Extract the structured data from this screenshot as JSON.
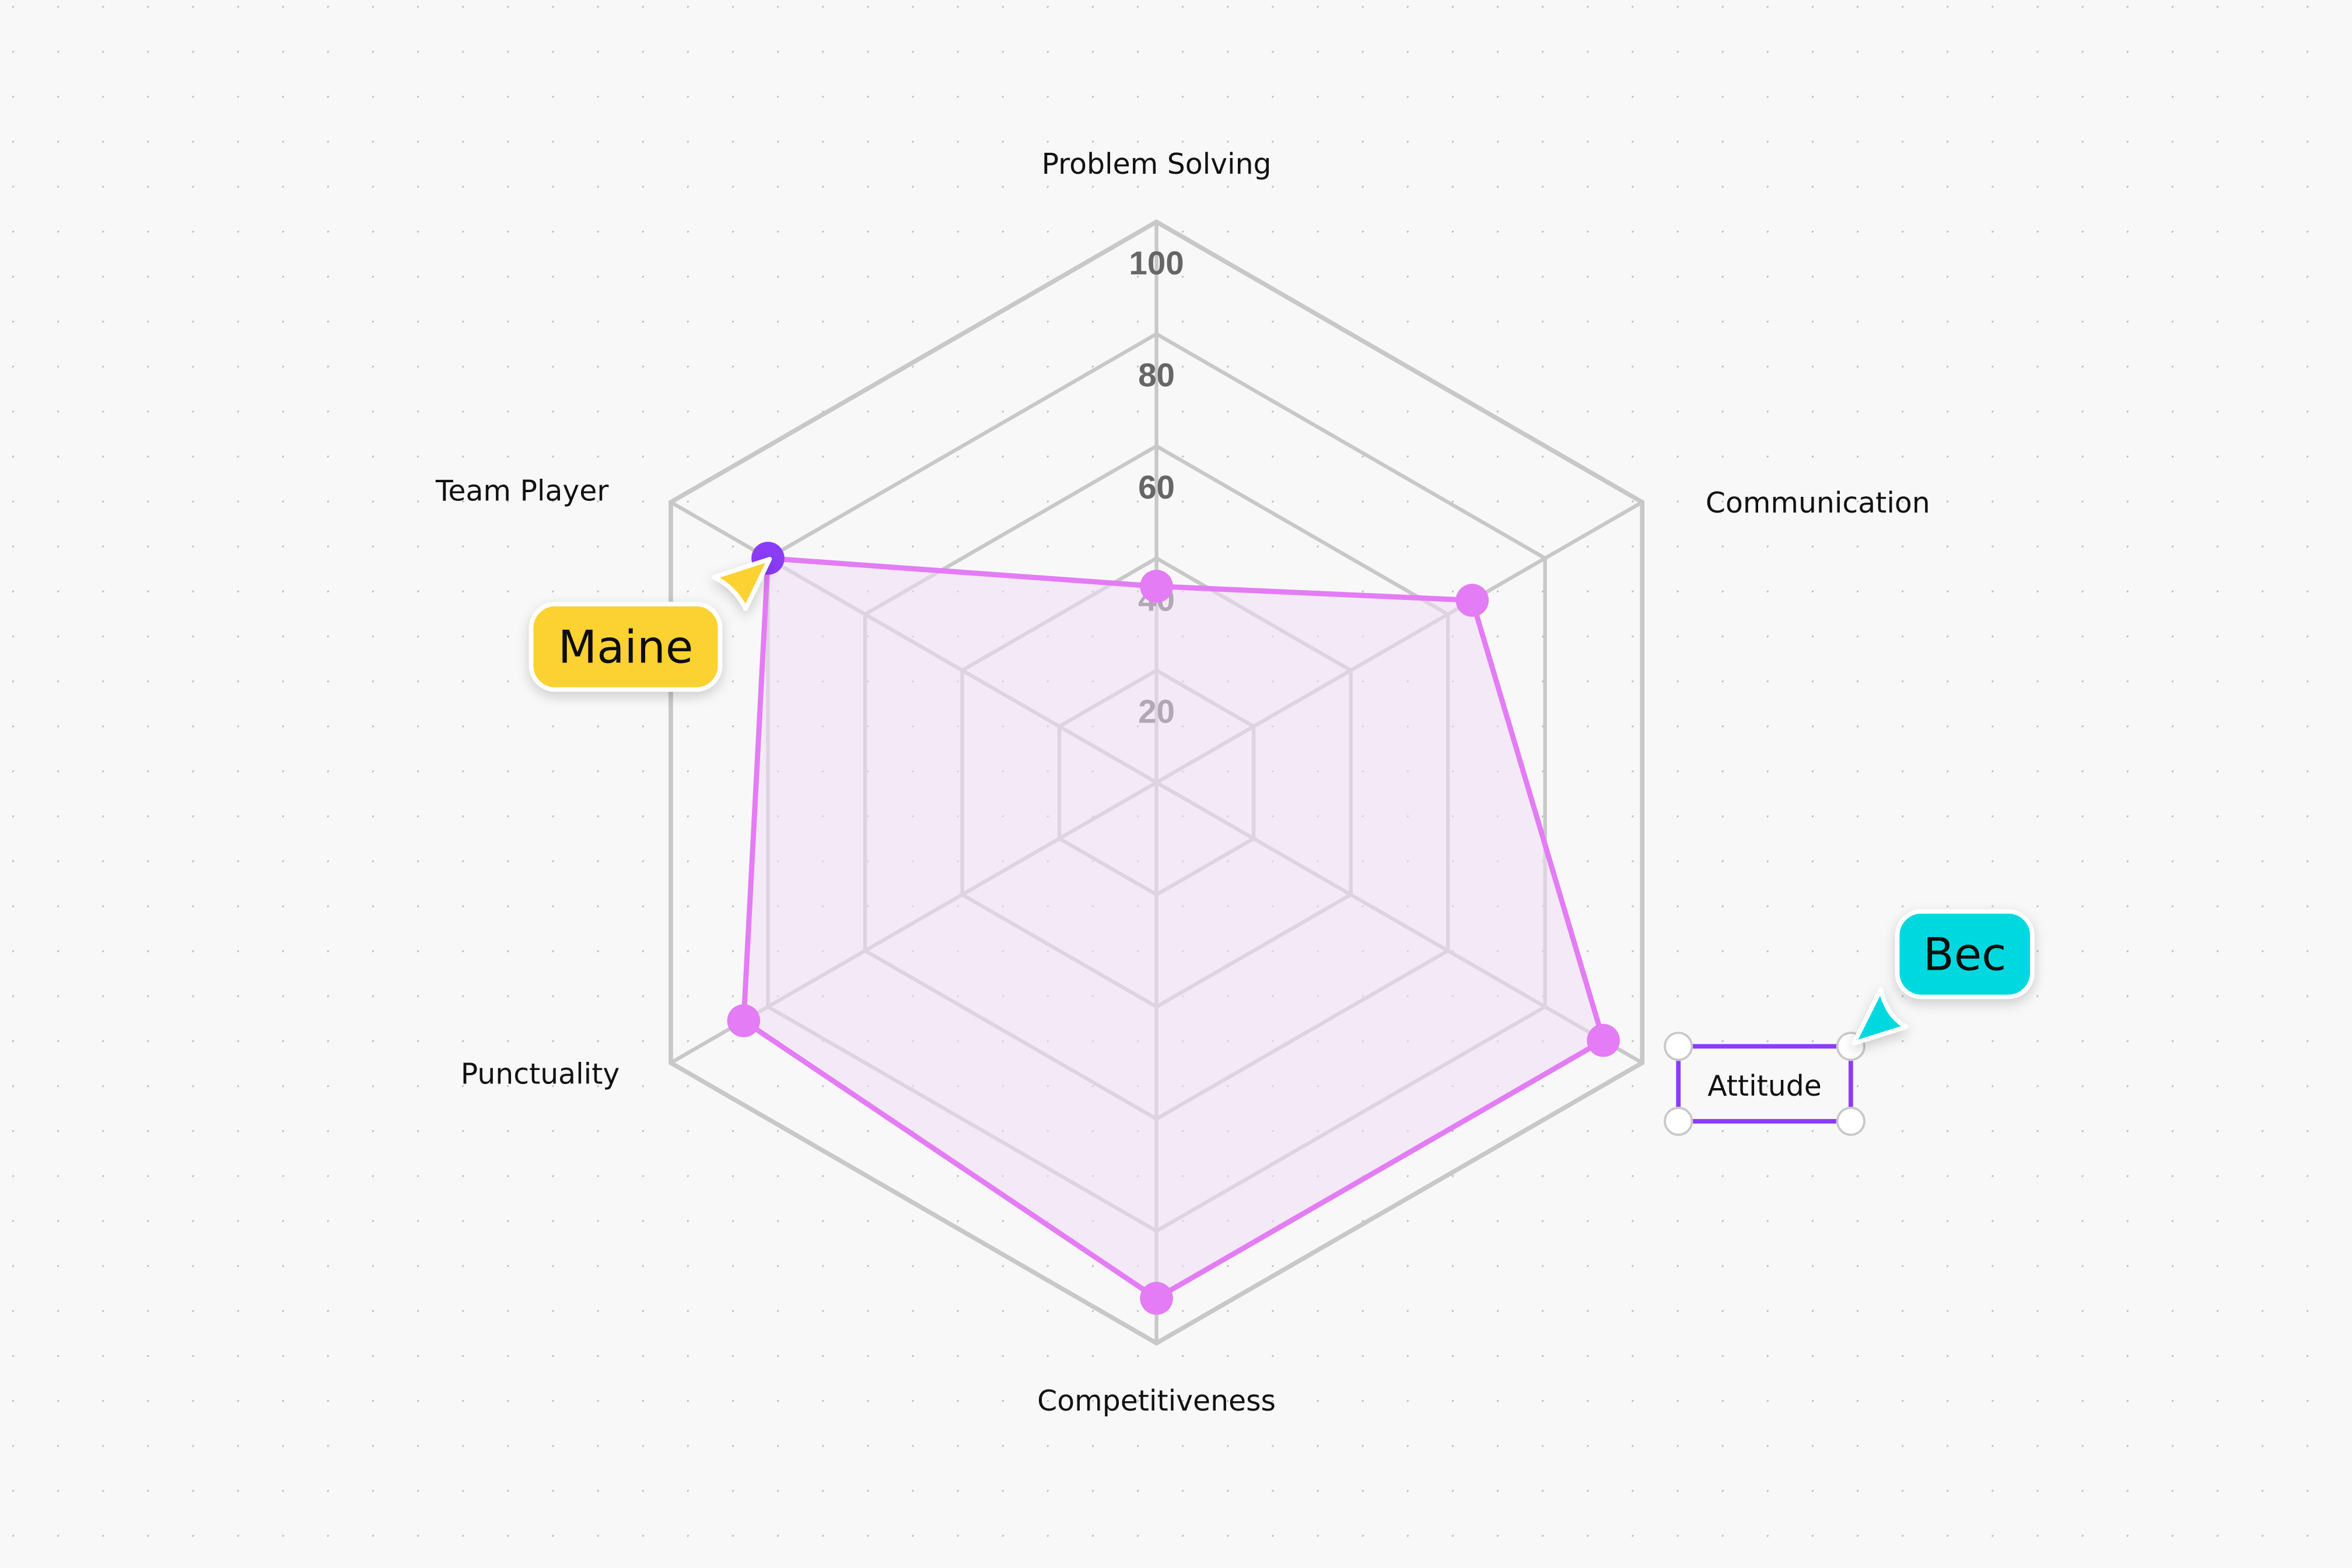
{
  "chart_data": {
    "type": "radar",
    "categories": [
      "Problem Solving",
      "Communication",
      "Attitude",
      "Competitiveness",
      "Punctuality",
      "Team Player"
    ],
    "values": [
      35,
      65,
      92,
      92,
      85,
      80
    ],
    "rlim": [
      0,
      100
    ],
    "ticks": [
      20,
      40,
      60,
      80,
      100
    ],
    "tick_labels": [
      "20",
      "40",
      "60",
      "80",
      "100"
    ],
    "grid": true,
    "colors": {
      "line": "#e37cf5",
      "fill": "#f1ddf4",
      "grid": "#c8c8c8",
      "highlight_point": "#8b3cf7"
    },
    "selected_category": "Attitude"
  },
  "collaborators": [
    {
      "name": "Maine",
      "color": "#fbd233"
    },
    {
      "name": "Bec",
      "color": "#00d8e0"
    }
  ],
  "selection": {
    "color": "#8b3cf7"
  }
}
